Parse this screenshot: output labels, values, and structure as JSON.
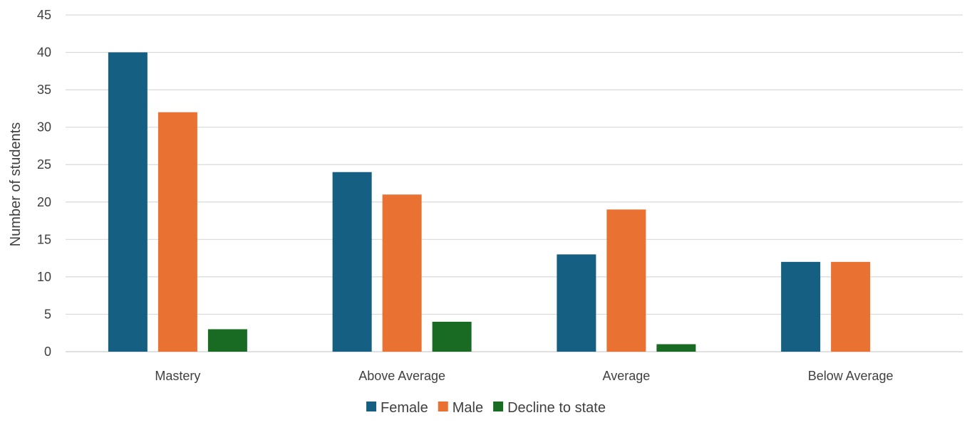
{
  "chart_data": {
    "type": "bar",
    "title": "",
    "xlabel": "",
    "ylabel": "Number of students",
    "ylim": [
      0,
      45
    ],
    "yticks": [
      "0",
      "5",
      "10",
      "15",
      "20",
      "25",
      "30",
      "35",
      "40",
      "45"
    ],
    "grid": true,
    "legend_position": "bottom",
    "categories": [
      "Mastery",
      "Above Average",
      "Average",
      "Below Average"
    ],
    "series": [
      {
        "name": "Female",
        "color": "#156082",
        "values": [
          40,
          24,
          13,
          12
        ]
      },
      {
        "name": "Male",
        "color": "#E97132",
        "values": [
          32,
          21,
          19,
          12
        ]
      },
      {
        "name": "Decline to state",
        "color": "#196B24",
        "values": [
          3,
          4,
          1,
          0
        ]
      }
    ]
  }
}
